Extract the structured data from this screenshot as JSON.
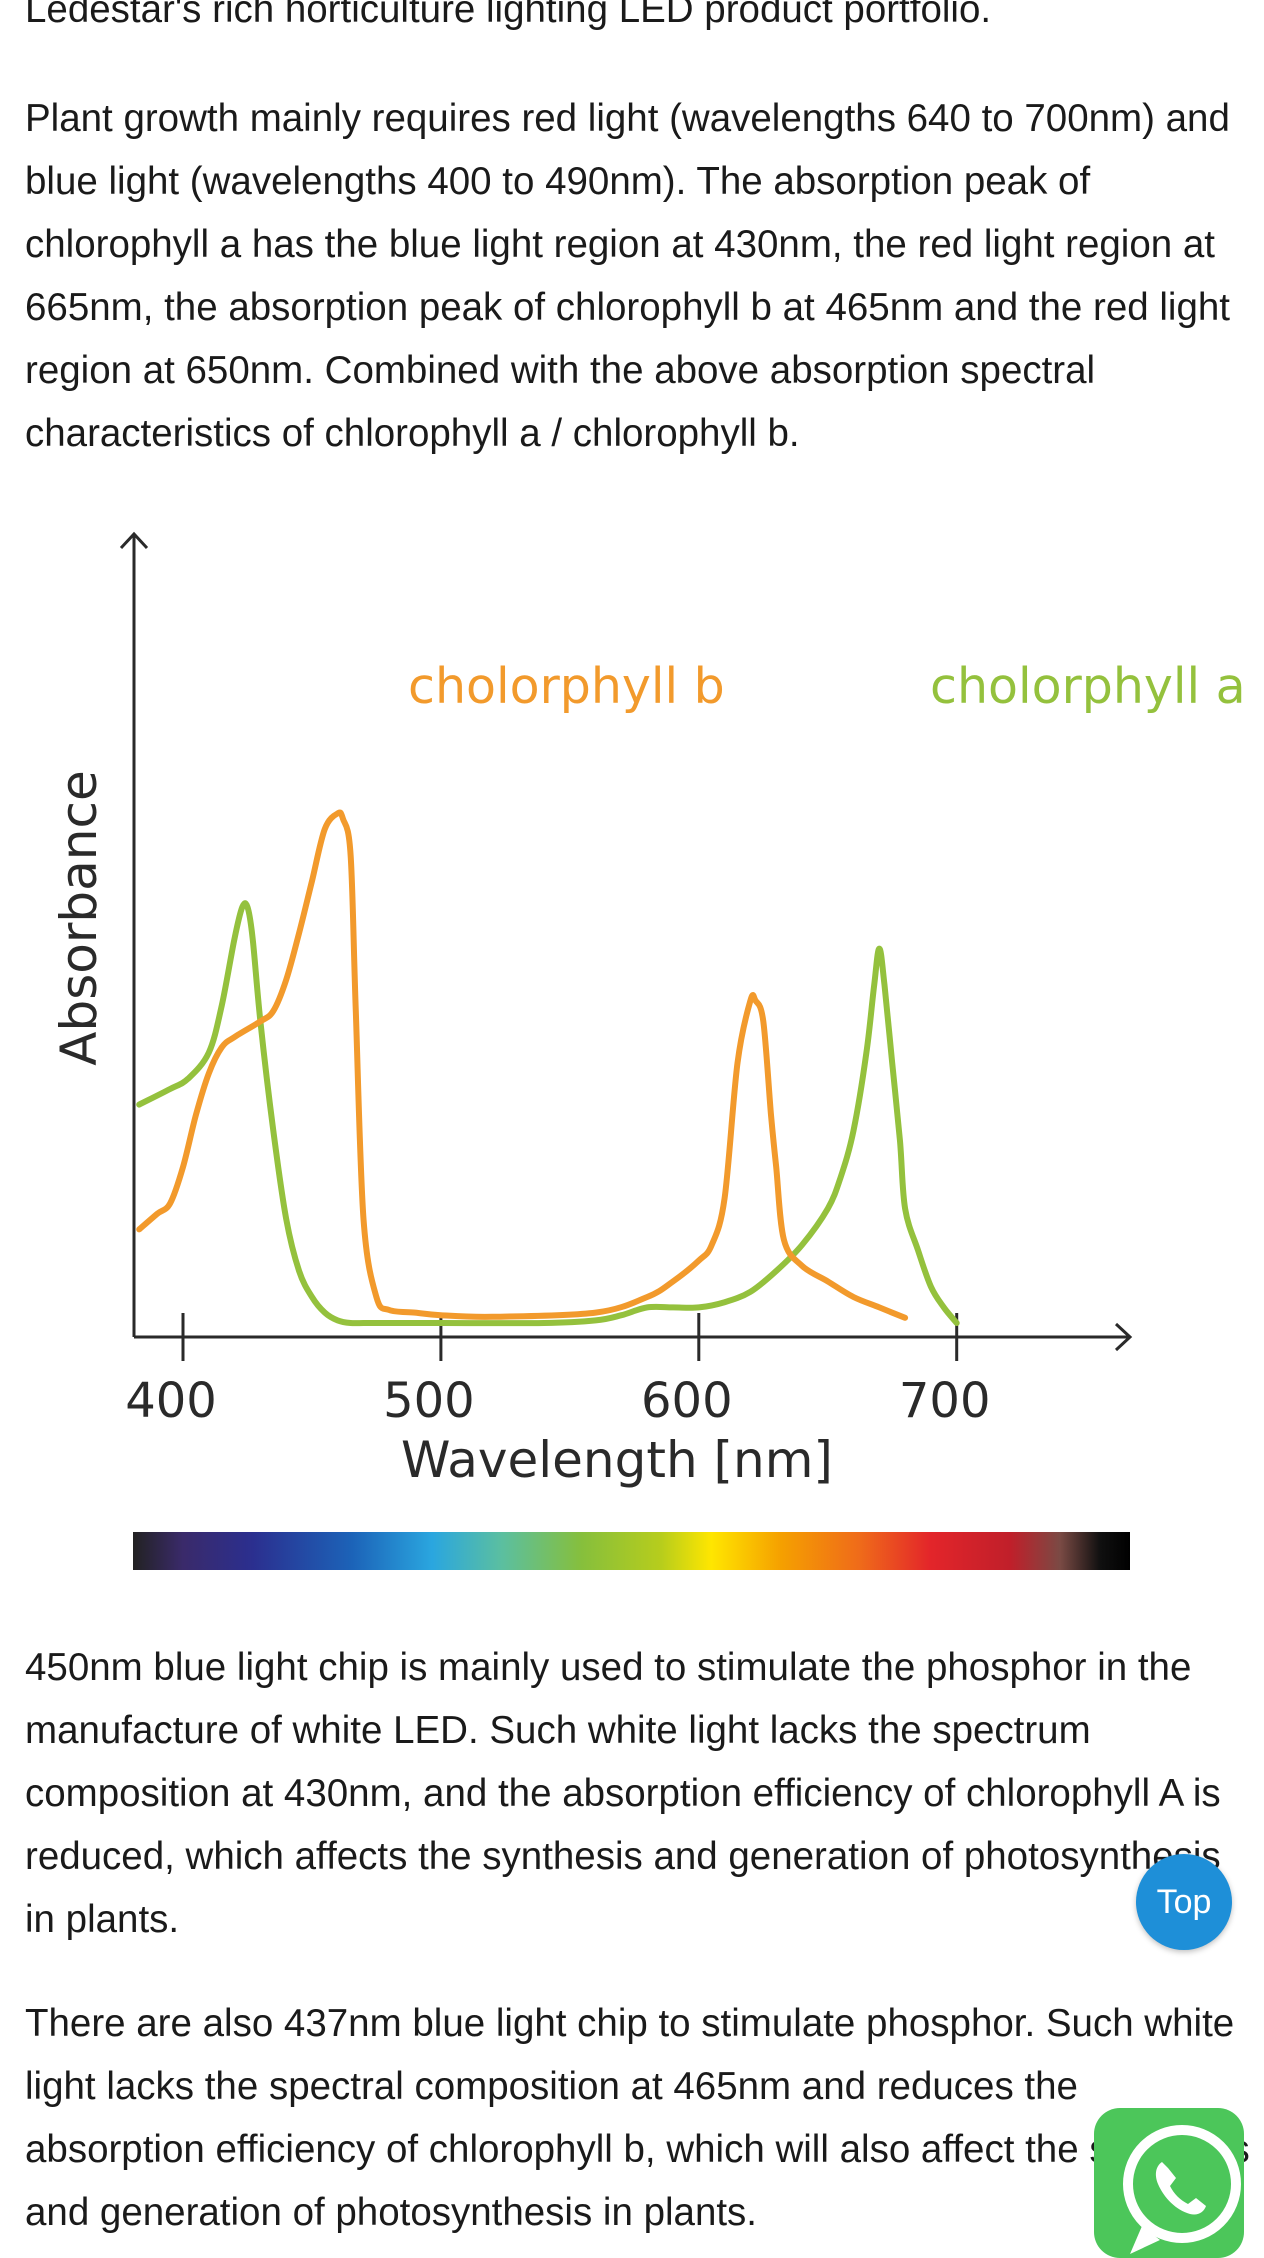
{
  "article": {
    "p0": "Ledestar's rich horticulture lighting LED product portfolio.",
    "p1": "Plant growth mainly requires red light (wavelengths 640 to 700nm) and blue light (wavelengths 400 to 490nm). The absorption peak of chlorophyll a has the blue light region at 430nm, the red light region at 665nm, the absorption peak of chlorophyll b at 465nm and the red light region at 650nm. Combined with the above absorption spectral characteristics of chlorophyll a / chlorophyll b.",
    "p2": "450nm blue light chip is mainly used to stimulate the phosphor in the manufacture of white LED. Such white light lacks the spectrum composition at 430nm, and the absorption efficiency of chlorophyll A is reduced, which affects the synthesis and generation of photosynthesis in plants.",
    "p3": "There are also 437nm blue light chip to stimulate phosphor. Such white light lacks the spectral composition at 465nm and reduces the absorption efficiency of chlorophyll b, which will also affect the synthesis and generation of photosynthesis in plants."
  },
  "chart_data": {
    "type": "line",
    "title": "",
    "xlabel": "Wavelength [nm]",
    "ylabel": "Absorbance",
    "xlim": [
      381,
      730
    ],
    "ylim": [
      0,
      100
    ],
    "xticks": [
      400,
      500,
      600,
      700
    ],
    "xtick_labels": [
      "400",
      "500",
      "600",
      "700"
    ],
    "series": [
      {
        "name": "cholorphyll a",
        "color": "#94c13d",
        "x": [
          383,
          395,
          402,
          410,
          415,
          420,
          423,
          425,
          427,
          430,
          435,
          440,
          445,
          450,
          455,
          460,
          465,
          470,
          475,
          480,
          500,
          540,
          560,
          570,
          580,
          590,
          600,
          610,
          620,
          630,
          640,
          650,
          655,
          660,
          665,
          668,
          670,
          672,
          675,
          678,
          680,
          685,
          690,
          695,
          700
        ],
        "y": [
          42,
          45,
          47,
          52,
          61,
          74,
          80,
          80,
          74,
          58,
          37,
          20,
          10,
          5,
          2,
          0.5,
          0,
          0,
          0,
          0,
          0,
          0,
          0.5,
          1.5,
          3,
          3,
          3,
          4,
          6,
          10,
          15,
          22,
          28,
          37,
          52,
          65,
          72,
          65,
          50,
          35,
          22,
          14,
          7,
          3,
          0
        ]
      },
      {
        "name": "cholorphyll b",
        "color": "#f29a2c",
        "x": [
          383,
          390,
          395,
          400,
          405,
          410,
          415,
          420,
          430,
          435,
          440,
          445,
          450,
          455,
          460,
          462,
          465,
          467,
          470,
          475,
          480,
          490,
          500,
          520,
          560,
          580,
          590,
          600,
          605,
          610,
          615,
          620,
          622,
          625,
          628,
          630,
          633,
          640,
          650,
          660,
          670,
          680
        ],
        "y": [
          18,
          21,
          23,
          30,
          40,
          48,
          53,
          55,
          58,
          60,
          66,
          75,
          85,
          95,
          98,
          97,
          90,
          60,
          20,
          5,
          2.5,
          2,
          1.5,
          1.2,
          2,
          5,
          8,
          12,
          15,
          24,
          50,
          62,
          62,
          58,
          40,
          30,
          16,
          11,
          8,
          5,
          3,
          1
        ]
      }
    ],
    "annotations": [
      {
        "text": "cholorphyll b",
        "color": "#f29a2c"
      },
      {
        "text": "cholorphyll a",
        "color": "#94c13d"
      }
    ],
    "spectrum_bar": true,
    "grid": false,
    "legend": "inline labels"
  },
  "ui": {
    "top_button_label": "Top",
    "colors": {
      "top_button": "#1e8fd8",
      "whatsapp_button": "#4cc65a"
    }
  }
}
